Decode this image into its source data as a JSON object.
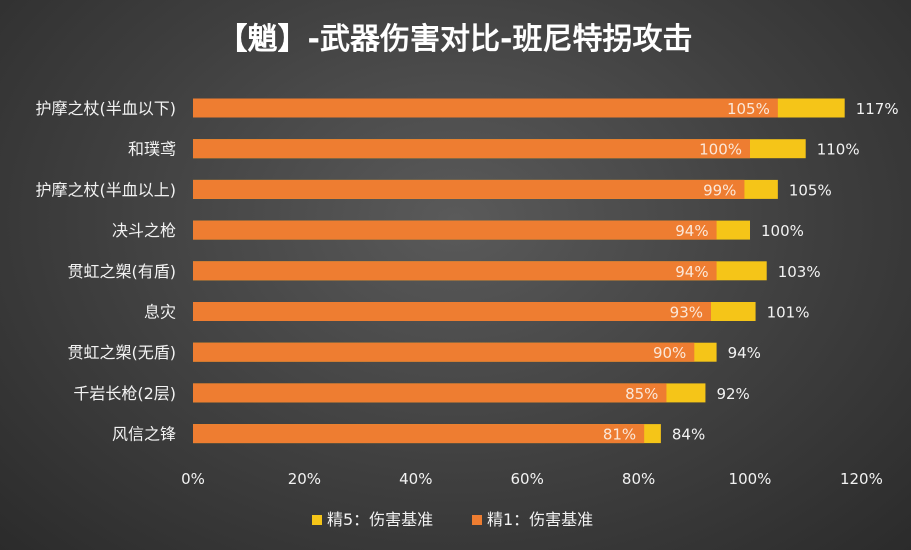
{
  "chart_data": {
    "type": "bar",
    "orientation": "horizontal",
    "stacked": "overlay",
    "title": "【魈】-武器伤害对比-班尼特拐攻击",
    "categories": [
      "护摩之杖(半血以下)",
      "和璞鸢",
      "护摩之杖(半血以上)",
      "决斗之枪",
      "贯虹之槊(有盾)",
      "息灾",
      "贯虹之槊(无盾)",
      "千岩长枪(2层)",
      "风信之锋"
    ],
    "series": [
      {
        "name": "精5：伤害基准",
        "color": "#f5c518",
        "values": [
          1.17,
          1.1,
          1.05,
          1.0,
          1.03,
          1.01,
          0.94,
          0.92,
          0.84
        ],
        "labels": [
          "117%",
          "110%",
          "105%",
          "100%",
          "103%",
          "101%",
          "94%",
          "92%",
          "84%"
        ]
      },
      {
        "name": "精1：伤害基准",
        "color": "#ee7d31",
        "values": [
          1.05,
          1.0,
          0.99,
          0.94,
          0.94,
          0.93,
          0.9,
          0.85,
          0.81
        ],
        "labels": [
          "105%",
          "100%",
          "99%",
          "94%",
          "94%",
          "93%",
          "90%",
          "85%",
          "81%"
        ]
      }
    ],
    "xlim": [
      0,
      1.2
    ],
    "xticks": [
      0,
      0.2,
      0.4,
      0.6,
      0.8,
      1.0,
      1.2
    ],
    "xtick_labels": [
      "0%",
      "20%",
      "40%",
      "60%",
      "80%",
      "100%",
      "120%"
    ],
    "grid": false,
    "legend_position": "bottom"
  }
}
